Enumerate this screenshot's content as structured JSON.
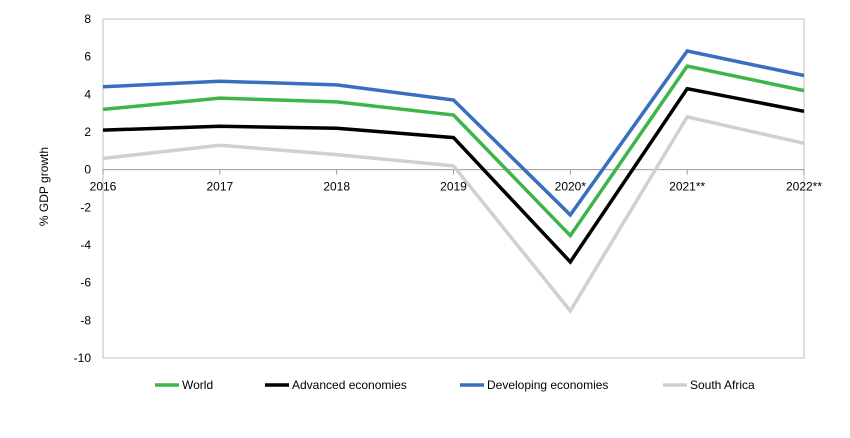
{
  "chart_data": {
    "type": "line",
    "title": "",
    "xlabel": "",
    "ylabel": "% GDP growth",
    "categories": [
      "2016",
      "2017",
      "2018",
      "2019",
      "2020*",
      "2021**",
      "2022**"
    ],
    "ylim": [
      -10,
      8
    ],
    "yticks": [
      "8",
      "6",
      "4",
      "2",
      "0",
      "-2",
      "-4",
      "-6",
      "-8",
      "-10"
    ],
    "legend_position": "bottom",
    "series": [
      {
        "name": "World",
        "color": "#3db54a",
        "values": [
          3.2,
          3.8,
          3.6,
          2.9,
          -3.5,
          5.5,
          4.2
        ]
      },
      {
        "name": "Advanced economies",
        "color": "#000000",
        "values": [
          2.1,
          2.3,
          2.2,
          1.7,
          -4.9,
          4.3,
          3.1
        ]
      },
      {
        "name": "Developing economies",
        "color": "#3a6fbf",
        "values": [
          4.4,
          4.7,
          4.5,
          3.7,
          -2.4,
          6.3,
          5.0
        ]
      },
      {
        "name": "South Africa",
        "color": "#d0d0d0",
        "values": [
          0.6,
          1.3,
          0.8,
          0.2,
          -7.5,
          2.8,
          1.4
        ]
      }
    ]
  }
}
